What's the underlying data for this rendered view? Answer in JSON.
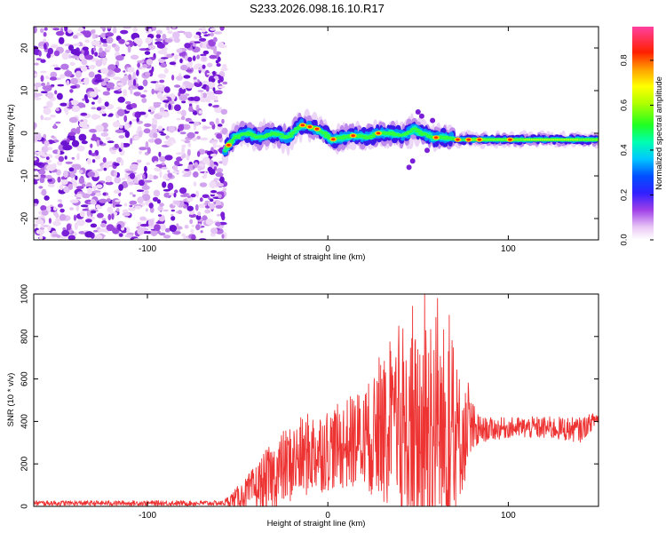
{
  "title": "S233.2026.098.16.10.R17",
  "chart_data": [
    {
      "type": "heatmap",
      "name": "spectrogram",
      "xlabel": "Height of straight line (km)",
      "ylabel": "Frequency (Hz)",
      "xlim": [
        -163,
        150
      ],
      "ylim": [
        -25,
        25
      ],
      "xticks": [
        -100,
        0,
        100
      ],
      "yticks": [
        -20,
        -10,
        0,
        10,
        20
      ],
      "noise_region_x": [
        -163,
        -57
      ],
      "signal_track": [
        {
          "x": -57,
          "y": -4
        },
        {
          "x": -52,
          "y": -1
        },
        {
          "x": -45,
          "y": 0
        },
        {
          "x": -38,
          "y": -1
        },
        {
          "x": -30,
          "y": 0
        },
        {
          "x": -22,
          "y": -1
        },
        {
          "x": -15,
          "y": 2
        },
        {
          "x": -10,
          "y": 1.5
        },
        {
          "x": -6,
          "y": 1
        },
        {
          "x": -2,
          "y": 0
        },
        {
          "x": 2,
          "y": -1.5
        },
        {
          "x": 8,
          "y": -1
        },
        {
          "x": 15,
          "y": -0.5
        },
        {
          "x": 22,
          "y": -1
        },
        {
          "x": 28,
          "y": 0
        },
        {
          "x": 35,
          "y": 0
        },
        {
          "x": 42,
          "y": -0.5
        },
        {
          "x": 48,
          "y": 1
        },
        {
          "x": 52,
          "y": 0
        },
        {
          "x": 58,
          "y": -1
        },
        {
          "x": 65,
          "y": -1
        },
        {
          "x": 72,
          "y": -1.5
        },
        {
          "x": 80,
          "y": -1.5
        },
        {
          "x": 90,
          "y": -1.5
        },
        {
          "x": 100,
          "y": -1.5
        },
        {
          "x": 115,
          "y": -1.5
        },
        {
          "x": 130,
          "y": -1.5
        },
        {
          "x": 150,
          "y": -1.5
        }
      ],
      "colorbar": {
        "label": "Normalized spectral amplitude",
        "range": [
          0,
          0.95
        ],
        "ticks": [
          0.0,
          0.2,
          0.4,
          0.6,
          0.8
        ],
        "tick_labels": [
          "0.0",
          "0.2",
          "0.4",
          "0.6",
          "0.8"
        ]
      }
    },
    {
      "type": "line",
      "name": "snr",
      "xlabel": "Height of straight line (km)",
      "ylabel": "SNR (10 * v/v)",
      "xlim": [
        -163,
        150
      ],
      "ylim": [
        0,
        1000
      ],
      "xticks": [
        -100,
        0,
        100
      ],
      "yticks": [
        0,
        200,
        400,
        600,
        800,
        1000
      ],
      "color": "#ee3333",
      "envelope": [
        {
          "x": -163,
          "base": 15,
          "amp": 12
        },
        {
          "x": -58,
          "base": 15,
          "amp": 12
        },
        {
          "x": -45,
          "base": 60,
          "amp": 80
        },
        {
          "x": -35,
          "base": 110,
          "amp": 150
        },
        {
          "x": -25,
          "base": 180,
          "amp": 180
        },
        {
          "x": -10,
          "base": 250,
          "amp": 200
        },
        {
          "x": 5,
          "base": 280,
          "amp": 200
        },
        {
          "x": 20,
          "base": 320,
          "amp": 250
        },
        {
          "x": 35,
          "base": 330,
          "amp": 350
        },
        {
          "x": 45,
          "base": 300,
          "amp": 500
        },
        {
          "x": 55,
          "base": 350,
          "amp": 600
        },
        {
          "x": 65,
          "base": 320,
          "amp": 550
        },
        {
          "x": 75,
          "base": 330,
          "amp": 250
        },
        {
          "x": 85,
          "base": 360,
          "amp": 60
        },
        {
          "x": 100,
          "base": 370,
          "amp": 50
        },
        {
          "x": 120,
          "base": 370,
          "amp": 55
        },
        {
          "x": 140,
          "base": 360,
          "amp": 60
        },
        {
          "x": 150,
          "base": 420,
          "amp": 30
        }
      ]
    }
  ]
}
